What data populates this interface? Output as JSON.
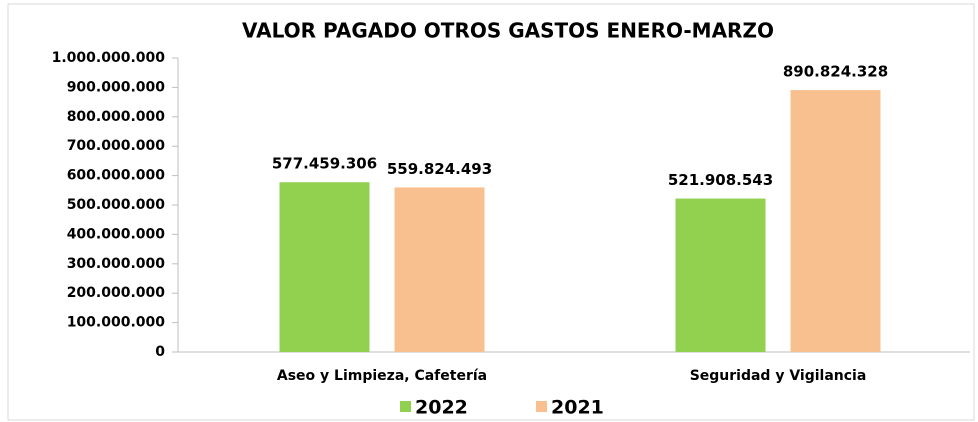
{
  "chart_data": {
    "type": "bar",
    "title": "VALOR PAGADO OTROS GASTOS ENERO-MARZO",
    "categories": [
      "Aseo y Limpieza, Cafetería",
      "Seguridad y Vigilancia"
    ],
    "series": [
      {
        "name": "2022",
        "color": "#92d050",
        "values": [
          577459306,
          521908543
        ],
        "value_labels": [
          "577.459.306",
          "521.908.543"
        ]
      },
      {
        "name": "2021",
        "color": "#f8c08f",
        "values": [
          559824493,
          890824328
        ],
        "value_labels": [
          "559.824.493",
          "890.824.328"
        ]
      }
    ],
    "ylim": [
      0,
      1000000000
    ],
    "yticks": [
      0,
      {
        "value": 100000000,
        "label": "100.000.000"
      },
      {
        "value": 200000000,
        "label": "200.000.000"
      },
      {
        "value": 300000000,
        "label": "300.000.000"
      },
      {
        "value": 400000000,
        "label": "400.000.000"
      },
      {
        "value": 500000000,
        "label": "500.000.000"
      },
      {
        "value": 600000000,
        "label": "600.000.000"
      },
      {
        "value": 700000000,
        "label": "700.000.000"
      },
      {
        "value": 800000000,
        "label": "800.000.000"
      },
      {
        "value": 900000000,
        "label": "900.000.000"
      },
      {
        "value": 1000000000,
        "label": "1.000.000.000"
      }
    ],
    "legend": "bottom"
  }
}
